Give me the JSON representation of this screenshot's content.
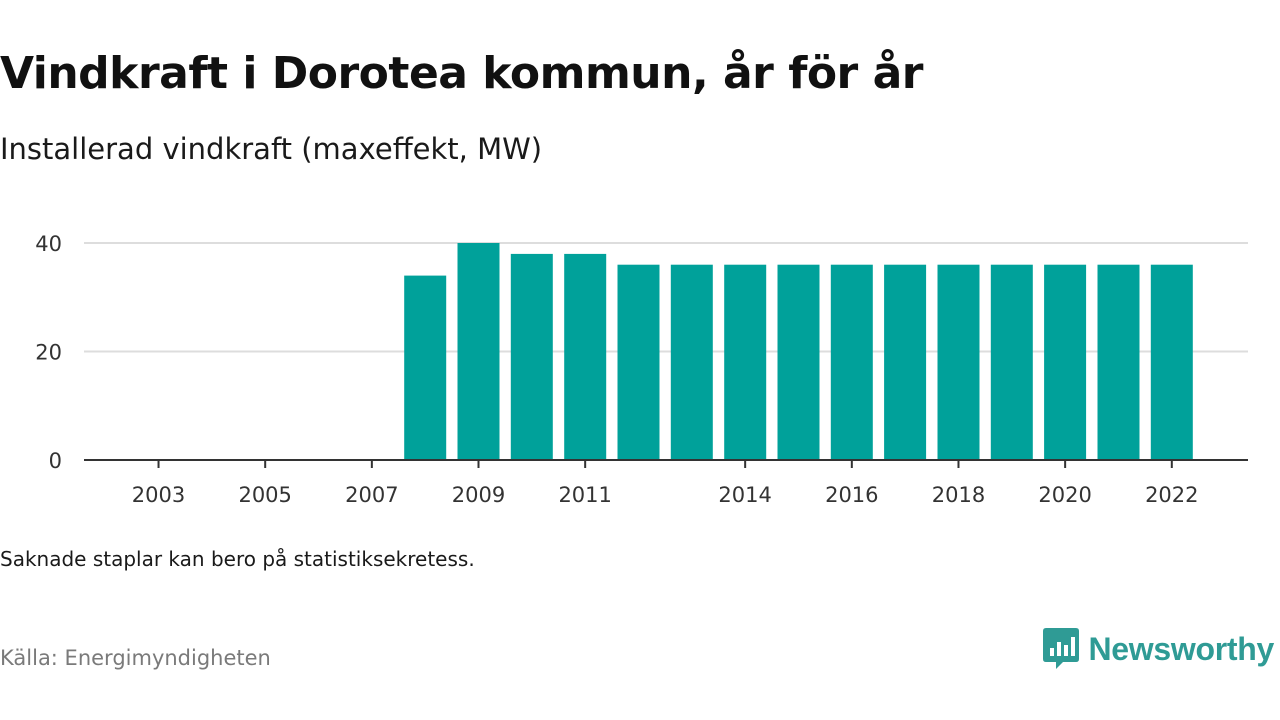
{
  "title": "Vindkraft i Dorotea kommun, år för år",
  "subtitle": "Installerad vindkraft (maxeffekt, MW)",
  "note": "Saknade staplar kan bero på statistiksekretess.",
  "source": "Källa: Energimyndigheten",
  "brand": {
    "name": "Newsworthy",
    "icon": "newsworthy-logo-icon"
  },
  "colors": {
    "bar": "#00a19a",
    "grid": "#dddddd",
    "axis": "#333333",
    "brand": "#2f9b95"
  },
  "chart_data": {
    "type": "bar",
    "title": "Vindkraft i Dorotea kommun, år för år",
    "ylabel": "Installerad vindkraft (maxeffekt, MW)",
    "xlabel": "",
    "categories": [
      2002,
      2003,
      2004,
      2005,
      2006,
      2007,
      2008,
      2009,
      2010,
      2011,
      2012,
      2013,
      2014,
      2015,
      2016,
      2017,
      2018,
      2019,
      2020,
      2021,
      2022
    ],
    "values": [
      null,
      null,
      null,
      null,
      null,
      null,
      34,
      40,
      38,
      38,
      36,
      36,
      36,
      36,
      36,
      36,
      36,
      36,
      36,
      36,
      36
    ],
    "x_tick_labels": [
      "2003",
      "2005",
      "2007",
      "2009",
      "2011",
      "2014",
      "2016",
      "2018",
      "2020",
      "2022"
    ],
    "y_ticks": [
      0,
      20,
      40
    ],
    "ylim": [
      0,
      40
    ],
    "grid": true,
    "legend": "none"
  }
}
